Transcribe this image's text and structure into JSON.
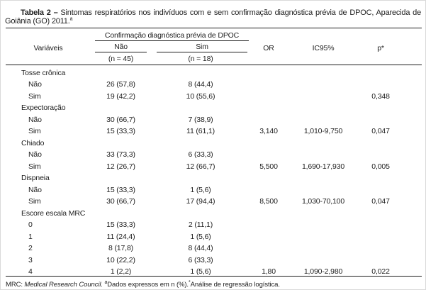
{
  "title": {
    "bold": "Tabela 2 –",
    "text": "Sintomas respiratórios nos indivíduos com e sem confirmação diagnóstica prévia de DPOC, Aparecida de Goiânia (GO) 2011.",
    "sup": "a"
  },
  "header": {
    "variables": "Variáveis",
    "group": "Confirmação diagnóstica prévia de DPOC",
    "col_nao": "Não",
    "col_sim": "Sim",
    "n_nao": "(n = 45)",
    "n_sim": "(n = 18)",
    "or": "OR",
    "ic": "IC95%",
    "p": "p*"
  },
  "rows": [
    {
      "type": "category",
      "label": "Tosse crônica"
    },
    {
      "type": "item",
      "label": "Não",
      "nao": "26 (57,8)",
      "sim": "8 (44,4)"
    },
    {
      "type": "item",
      "label": "Sim",
      "nao": "19 (42,2)",
      "sim": "10 (55,6)",
      "p": "0,348"
    },
    {
      "type": "category",
      "label": "Expectoração"
    },
    {
      "type": "item",
      "label": "Não",
      "nao": "30 (66,7)",
      "sim": "7 (38,9)"
    },
    {
      "type": "item",
      "label": "Sim",
      "nao": "15 (33,3)",
      "sim": "11 (61,1)",
      "or": "3,140",
      "ic": "1,010-9,750",
      "p": "0,047"
    },
    {
      "type": "category",
      "label": "Chiado"
    },
    {
      "type": "item",
      "label": "Não",
      "nao": "33 (73,3)",
      "sim": "6 (33,3)"
    },
    {
      "type": "item",
      "label": "Sim",
      "nao": "12 (26,7)",
      "sim": "12 (66,7)",
      "or": "5,500",
      "ic": "1,690-17,930",
      "p": "0,005"
    },
    {
      "type": "category",
      "label": "Dispneia"
    },
    {
      "type": "item",
      "label": "Não",
      "nao": "15 (33,3)",
      "sim": "1 (5,6)"
    },
    {
      "type": "item",
      "label": "Sim",
      "nao": "30 (66,7)",
      "sim": "17 (94,4)",
      "or": "8,500",
      "ic": "1,030-70,100",
      "p": "0,047"
    },
    {
      "type": "category",
      "label": "Escore escala MRC"
    },
    {
      "type": "item",
      "label": "0",
      "nao": "15 (33,3)",
      "sim": "2 (11,1)"
    },
    {
      "type": "item",
      "label": "1",
      "nao": "11 (24,4)",
      "sim": "1 (5,6)"
    },
    {
      "type": "item",
      "label": "2",
      "nao": "8 (17,8)",
      "sim": "8 (44,4)"
    },
    {
      "type": "item",
      "label": "3",
      "nao": "10 (22,2)",
      "sim": "6 (33,3)"
    },
    {
      "type": "item",
      "label": "4",
      "nao": "1 (2,2)",
      "sim": "1 (5,6)",
      "or": "1,80",
      "ic": "1,090-2,980",
      "p": "0,022"
    }
  ],
  "footer": {
    "mrc_label": "MRC:",
    "mrc_name": "Medical Research Council.",
    "note_a_sup": "a",
    "note_a_text": "Dados expressos em n (%).",
    "note_b_sup": "*",
    "note_b_text": "Análise de regressão logística."
  }
}
